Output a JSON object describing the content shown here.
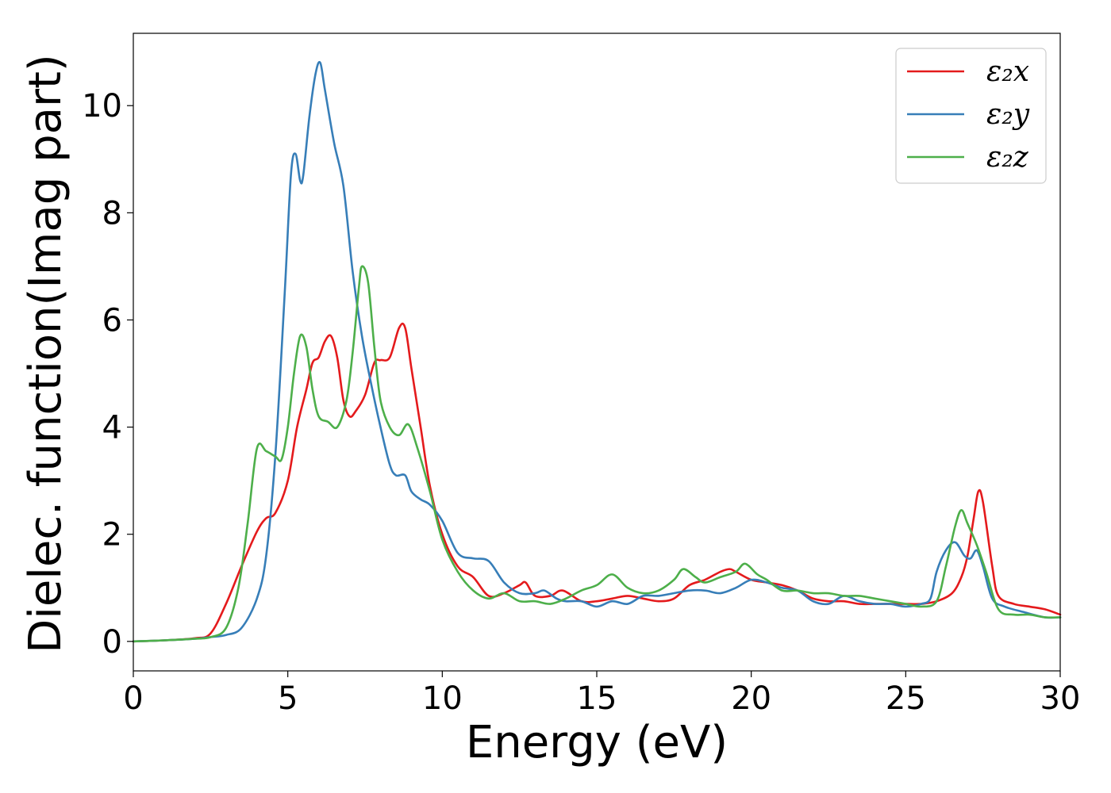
{
  "chart_data": {
    "type": "line",
    "xlabel": "Energy (eV)",
    "ylabel": "Dielec. function(Imag part)",
    "xlim": [
      0,
      30
    ],
    "ylim": [
      -0.55,
      11.35
    ],
    "xticks": [
      0,
      5,
      10,
      15,
      20,
      25,
      30
    ],
    "yticks": [
      0,
      2,
      4,
      6,
      8,
      10
    ],
    "grid": false,
    "legend_position": "top-right",
    "series": [
      {
        "name": "ε₂x",
        "color": "#e41a1c",
        "x": [
          0,
          1,
          2,
          2.5,
          3,
          3.5,
          4,
          4.3,
          4.6,
          5,
          5.3,
          5.6,
          5.8,
          6,
          6.2,
          6.4,
          6.6,
          6.8,
          7,
          7.2,
          7.5,
          7.8,
          8,
          8.3,
          8.6,
          8.8,
          9,
          9.3,
          9.6,
          10,
          10.5,
          11,
          11.5,
          12,
          12.5,
          12.7,
          13,
          13.5,
          13.9,
          14.5,
          15,
          15.5,
          16,
          16.5,
          17,
          17.5,
          18,
          18.5,
          19,
          19.3,
          19.5,
          20,
          20.5,
          21,
          21.5,
          22,
          22.5,
          23,
          23.5,
          24,
          24.5,
          25,
          25.5,
          26,
          26.5,
          26.8,
          27,
          27.2,
          27.35,
          27.5,
          27.8,
          28,
          28.5,
          29,
          29.5,
          30
        ],
        "y": [
          0,
          0.02,
          0.06,
          0.15,
          0.7,
          1.4,
          2.05,
          2.3,
          2.4,
          3.0,
          4.0,
          4.7,
          5.2,
          5.3,
          5.6,
          5.7,
          5.3,
          4.5,
          4.2,
          4.3,
          4.6,
          5.2,
          5.25,
          5.3,
          5.85,
          5.85,
          5.1,
          4.0,
          2.9,
          2.0,
          1.4,
          1.2,
          0.85,
          0.9,
          1.05,
          1.1,
          0.85,
          0.85,
          0.95,
          0.75,
          0.75,
          0.8,
          0.85,
          0.8,
          0.75,
          0.8,
          1.05,
          1.15,
          1.3,
          1.35,
          1.3,
          1.15,
          1.1,
          1.05,
          0.95,
          0.8,
          0.75,
          0.75,
          0.7,
          0.7,
          0.7,
          0.7,
          0.7,
          0.75,
          0.9,
          1.2,
          1.6,
          2.3,
          2.8,
          2.6,
          1.4,
          0.85,
          0.7,
          0.65,
          0.6,
          0.5
        ]
      },
      {
        "name": "ε₂y",
        "color": "#377eb8",
        "x": [
          0,
          1,
          2,
          2.5,
          3,
          3.5,
          4,
          4.3,
          4.6,
          4.9,
          5.1,
          5.25,
          5.4,
          5.5,
          5.7,
          5.9,
          6.05,
          6.2,
          6.5,
          6.8,
          7.1,
          7.4,
          7.7,
          8,
          8.3,
          8.5,
          8.8,
          9,
          9.3,
          9.6,
          10,
          10.5,
          11,
          11.5,
          12,
          12.5,
          13,
          13.3,
          13.7,
          14,
          14.5,
          15,
          15.5,
          16,
          16.5,
          17,
          17.5,
          18,
          18.5,
          19,
          19.5,
          20,
          20.5,
          21,
          21.5,
          22,
          22.5,
          23,
          23.5,
          24,
          24.5,
          25,
          25.5,
          25.8,
          26,
          26.3,
          26.6,
          26.9,
          27.1,
          27.3,
          27.5,
          27.8,
          28.2,
          28.8,
          29.5,
          30
        ],
        "y": [
          0,
          0.02,
          0.05,
          0.08,
          0.12,
          0.25,
          0.8,
          1.6,
          3.5,
          6.5,
          8.7,
          9.1,
          8.6,
          8.7,
          9.8,
          10.6,
          10.8,
          10.3,
          9.3,
          8.5,
          6.9,
          5.7,
          4.8,
          4.0,
          3.3,
          3.1,
          3.1,
          2.8,
          2.65,
          2.55,
          2.25,
          1.65,
          1.55,
          1.5,
          1.1,
          0.9,
          0.9,
          0.95,
          0.8,
          0.75,
          0.75,
          0.65,
          0.75,
          0.7,
          0.85,
          0.85,
          0.9,
          0.95,
          0.95,
          0.9,
          1.0,
          1.15,
          1.1,
          1.0,
          0.95,
          0.75,
          0.7,
          0.85,
          0.75,
          0.7,
          0.7,
          0.65,
          0.7,
          0.8,
          1.3,
          1.7,
          1.85,
          1.6,
          1.55,
          1.7,
          1.4,
          0.8,
          0.65,
          0.55,
          0.45,
          0.45
        ]
      },
      {
        "name": "ε₂z",
        "color": "#4daf4a",
        "x": [
          0,
          1,
          2,
          2.5,
          3,
          3.4,
          3.7,
          4,
          4.3,
          4.6,
          4.8,
          5,
          5.2,
          5.4,
          5.6,
          5.8,
          6,
          6.3,
          6.6,
          6.9,
          7.1,
          7.3,
          7.4,
          7.6,
          7.8,
          8,
          8.3,
          8.6,
          8.9,
          9.2,
          9.6,
          10,
          10.5,
          11,
          11.5,
          12,
          12.5,
          13,
          13.5,
          14,
          14.5,
          15,
          15.5,
          16,
          16.5,
          17,
          17.5,
          17.8,
          18.2,
          18.5,
          19,
          19.5,
          19.8,
          20.2,
          20.5,
          21,
          21.5,
          22,
          22.5,
          23,
          23.5,
          24,
          24.5,
          25,
          25.5,
          26,
          26.3,
          26.6,
          26.8,
          27,
          27.3,
          27.6,
          28,
          28.5,
          29,
          29.5,
          30
        ],
        "y": [
          0,
          0.02,
          0.05,
          0.08,
          0.25,
          1.0,
          2.2,
          3.6,
          3.55,
          3.45,
          3.4,
          4.0,
          5.0,
          5.7,
          5.5,
          4.7,
          4.2,
          4.1,
          4.0,
          4.5,
          5.4,
          6.6,
          7.0,
          6.7,
          5.5,
          4.5,
          4.0,
          3.85,
          4.05,
          3.6,
          2.8,
          1.9,
          1.3,
          0.95,
          0.8,
          0.9,
          0.75,
          0.75,
          0.7,
          0.8,
          0.95,
          1.05,
          1.25,
          1.0,
          0.9,
          0.95,
          1.15,
          1.35,
          1.2,
          1.1,
          1.2,
          1.3,
          1.45,
          1.25,
          1.15,
          0.95,
          0.95,
          0.9,
          0.9,
          0.85,
          0.85,
          0.8,
          0.75,
          0.7,
          0.65,
          0.75,
          1.4,
          2.15,
          2.45,
          2.2,
          1.8,
          1.3,
          0.6,
          0.5,
          0.5,
          0.45,
          0.45
        ]
      }
    ]
  }
}
